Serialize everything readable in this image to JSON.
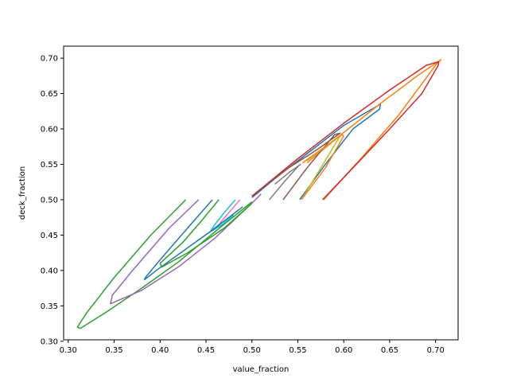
{
  "chart_data": {
    "type": "line",
    "xlabel": "value_fraction",
    "ylabel": "deck_fraction",
    "xlim": [
      0.295,
      0.7245
    ],
    "ylim": [
      0.302,
      0.717
    ],
    "xticks": [
      0.3,
      0.35,
      0.4,
      0.45,
      0.5,
      0.55,
      0.6,
      0.65,
      0.7
    ],
    "yticks": [
      0.3,
      0.35,
      0.4,
      0.45,
      0.5,
      0.55,
      0.6,
      0.65,
      0.7
    ],
    "xtick_labels": [
      "0.30",
      "0.35",
      "0.40",
      "0.45",
      "0.50",
      "0.55",
      "0.60",
      "0.65",
      "0.70"
    ],
    "ytick_labels": [
      "0.30",
      "0.35",
      "0.40",
      "0.45",
      "0.50",
      "0.55",
      "0.60",
      "0.65",
      "0.70"
    ],
    "grid": false,
    "series": [
      {
        "color": "#1f77b4",
        "x": [
          0.552,
          0.58,
          0.61,
          0.639,
          0.64,
          0.6,
          0.56,
          0.53,
          0.5
        ],
        "y": [
          0.5,
          0.55,
          0.6,
          0.628,
          0.635,
          0.605,
          0.565,
          0.535,
          0.503
        ]
      },
      {
        "color": "#ff7f0e",
        "x": [
          0.578,
          0.62,
          0.66,
          0.7,
          0.706,
          0.68,
          0.64,
          0.6,
          0.56
        ],
        "y": [
          0.5,
          0.56,
          0.62,
          0.69,
          0.698,
          0.675,
          0.636,
          0.595,
          0.552
        ]
      },
      {
        "color": "#2ca02c",
        "x": [
          0.428,
          0.39,
          0.35,
          0.32,
          0.31,
          0.313,
          0.34,
          0.38,
          0.42,
          0.46,
          0.5
        ],
        "y": [
          0.5,
          0.45,
          0.39,
          0.34,
          0.32,
          0.318,
          0.34,
          0.375,
          0.412,
          0.455,
          0.497
        ]
      },
      {
        "color": "#d62728",
        "x": [
          0.577,
          0.61,
          0.65,
          0.685,
          0.703,
          0.703,
          0.69,
          0.65,
          0.6,
          0.55,
          0.5
        ],
        "y": [
          0.5,
          0.545,
          0.6,
          0.65,
          0.69,
          0.695,
          0.69,
          0.655,
          0.608,
          0.558,
          0.505
        ]
      },
      {
        "color": "#9467bd",
        "x": [
          0.442,
          0.41,
          0.37,
          0.348,
          0.346,
          0.38,
          0.42,
          0.46,
          0.5,
          0.51
        ],
        "y": [
          0.5,
          0.46,
          0.4,
          0.365,
          0.353,
          0.372,
          0.405,
          0.446,
          0.495,
          0.508
        ]
      },
      {
        "color": "#8c564b",
        "x": [
          0.534,
          0.56,
          0.59,
          0.596,
          0.57,
          0.54,
          0.51
        ],
        "y": [
          0.5,
          0.545,
          0.592,
          0.594,
          0.57,
          0.545,
          0.515
        ]
      },
      {
        "color": "#e377c2",
        "x": [
          0.487,
          0.475,
          0.462,
          0.455,
          0.47,
          0.486
        ],
        "y": [
          0.5,
          0.482,
          0.462,
          0.456,
          0.47,
          0.486
        ]
      },
      {
        "color": "#7f7f7f",
        "x": [
          0.519,
          0.535,
          0.551,
          0.553,
          0.54,
          0.525
        ],
        "y": [
          0.5,
          0.525,
          0.548,
          0.55,
          0.538,
          0.522
        ]
      },
      {
        "color": "#bcbd22",
        "x": [
          0.554,
          0.575,
          0.596,
          0.597,
          0.58,
          0.56
        ],
        "y": [
          0.5,
          0.545,
          0.59,
          0.592,
          0.575,
          0.555
        ]
      },
      {
        "color": "#17becf",
        "x": [
          0.482,
          0.47,
          0.458,
          0.455,
          0.468,
          0.48
        ],
        "y": [
          0.5,
          0.482,
          0.462,
          0.455,
          0.465,
          0.478
        ]
      },
      {
        "color": "#1f77b4",
        "x": [
          0.457,
          0.43,
          0.4,
          0.384,
          0.383,
          0.4,
          0.43,
          0.46,
          0.49
        ],
        "y": [
          0.5,
          0.46,
          0.415,
          0.39,
          0.387,
          0.404,
          0.432,
          0.46,
          0.49
        ]
      },
      {
        "color": "#ff7f0e",
        "x": [
          0.554,
          0.58,
          0.6,
          0.598,
          0.58,
          0.555
        ],
        "y": [
          0.5,
          0.545,
          0.59,
          0.592,
          0.575,
          0.552
        ]
      },
      {
        "color": "#2ca02c",
        "x": [
          0.464,
          0.445,
          0.425,
          0.4,
          0.402,
          0.43,
          0.47,
          0.5
        ],
        "y": [
          0.5,
          0.47,
          0.44,
          0.41,
          0.405,
          0.425,
          0.46,
          0.495
        ]
      }
    ]
  }
}
